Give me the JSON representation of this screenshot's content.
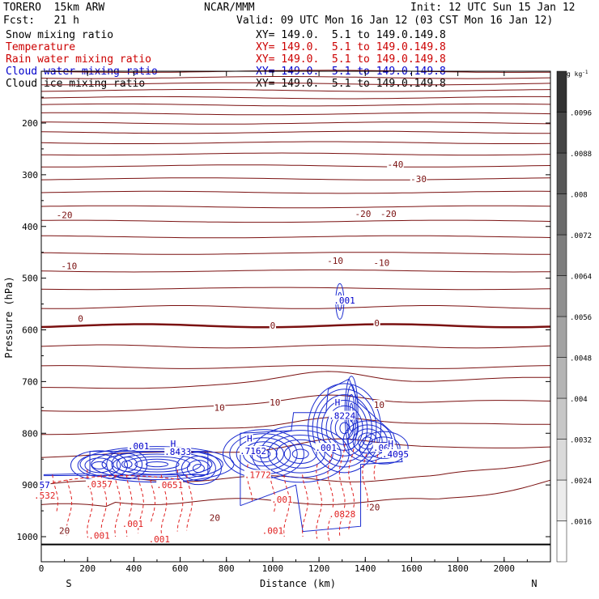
{
  "header": {
    "model": "TORERO  15km ARW",
    "center": "NCAR/MMM",
    "init": "Init: 12 UTC Sun 15 Jan 12",
    "fcst": "Fcst:   21 h",
    "valid": "Valid: 09 UTC Mon 16 Jan 12 (03 CST Mon 16 Jan 12)"
  },
  "fields": [
    {
      "name": "Snow mixing ratio",
      "xy": "XY= 149.0.  5.1 to 149.0.149.8",
      "color": "#000000"
    },
    {
      "name": "Temperature",
      "xy": "XY= 149.0.  5.1 to 149.0.149.8",
      "color": "#cc0000"
    },
    {
      "name": "Rain water mixing ratio",
      "xy": "XY= 149.0.  5.1 to 149.0.149.8",
      "color": "#cc0000"
    },
    {
      "name": "Cloud water mixing ratio",
      "xy": "XY= 149.0.  5.1 to 149.0.149.8",
      "color": "#0000cc"
    },
    {
      "name": "Cloud ice mixing ratio",
      "xy": "XY= 149.0.  5.1 to 149.0.149.8",
      "color": "#000000"
    }
  ],
  "chart_data": {
    "type": "cross-section contour",
    "xlabel": "Distance (km)",
    "ylabel": "Pressure (hPa)",
    "xlim": [
      0,
      2200
    ],
    "ylim": [
      1050,
      100
    ],
    "xticks": [
      0,
      200,
      400,
      600,
      800,
      1000,
      1200,
      1400,
      1600,
      1800,
      2000
    ],
    "yticks": [
      200,
      300,
      400,
      500,
      600,
      700,
      800,
      900,
      1000
    ],
    "x_end_labels": {
      "left": "S",
      "right": "N"
    },
    "colorbar": {
      "unit": "g kg",
      "unit_exp": "-1",
      "ticks": [
        ".0016",
        ".0024",
        ".0032",
        ".004",
        ".0048",
        ".0056",
        ".0064",
        ".0072",
        ".008",
        ".0088",
        ".0096"
      ]
    },
    "temperature_labels": [
      {
        "text": "-40",
        "x": 1530,
        "p": 280
      },
      {
        "text": "-30",
        "x": 1630,
        "p": 308
      },
      {
        "text": "-20",
        "x": 100,
        "p": 378
      },
      {
        "text": "-20",
        "x": 1390,
        "p": 375
      },
      {
        "text": "-20",
        "x": 1500,
        "p": 375
      },
      {
        "text": "-10",
        "x": 120,
        "p": 476
      },
      {
        "text": "-10",
        "x": 1270,
        "p": 466
      },
      {
        "text": "-10",
        "x": 1470,
        "p": 470
      },
      {
        "text": "0",
        "x": 170,
        "p": 578
      },
      {
        "text": "0",
        "x": 1000,
        "p": 591
      },
      {
        "text": "0",
        "x": 1450,
        "p": 587
      },
      {
        "text": "10",
        "x": 770,
        "p": 750
      },
      {
        "text": "10",
        "x": 1010,
        "p": 740
      },
      {
        "text": "10",
        "x": 1460,
        "p": 745
      },
      {
        "text": "20",
        "x": 100,
        "p": 988
      },
      {
        "text": "20",
        "x": 750,
        "p": 963
      },
      {
        "text": "20",
        "x": 1440,
        "p": 943
      }
    ],
    "cloud_labels": [
      {
        "text": ".001",
        "x": 1310,
        "p": 543,
        "color": "#0000cc"
      },
      {
        "text": ".001",
        "x": 420,
        "p": 825,
        "color": "#0000cc"
      },
      {
        "text": "H",
        "x": 570,
        "p": 820,
        "color": "#0000cc"
      },
      {
        "text": ".8433",
        "x": 590,
        "p": 836,
        "color": "#0000cc"
      },
      {
        "text": "H",
        "x": 900,
        "p": 810,
        "color": "#0000cc"
      },
      {
        "text": ".7162",
        "x": 915,
        "p": 834,
        "color": "#0000cc"
      },
      {
        "text": "H",
        "x": 1280,
        "p": 740,
        "color": "#0000cc"
      },
      {
        "text": ".8224",
        "x": 1300,
        "p": 766,
        "color": "#0000cc"
      },
      {
        "text": ".001",
        "x": 1230,
        "p": 828,
        "color": "#0000cc"
      },
      {
        "text": ".001",
        "x": 1480,
        "p": 828,
        "color": "#0000cc"
      },
      {
        "text": "H",
        "x": 1510,
        "p": 820,
        "color": "#0000cc"
      },
      {
        "text": ".4095",
        "x": 1530,
        "p": 840,
        "color": "#0000cc"
      },
      {
        "text": "57",
        "x": 15,
        "p": 900,
        "color": "#0000cc"
      }
    ],
    "rain_labels": [
      {
        "text": ".532",
        "x": 15,
        "p": 920
      },
      {
        "text": ".0357",
        "x": 250,
        "p": 898
      },
      {
        "text": ".0651",
        "x": 555,
        "p": 900
      },
      {
        "text": ".1772",
        "x": 935,
        "p": 880
      },
      {
        "text": ".001",
        "x": 1040,
        "p": 928
      },
      {
        "text": ".001",
        "x": 250,
        "p": 998
      },
      {
        "text": ".001",
        "x": 395,
        "p": 975
      },
      {
        "text": ".001",
        "x": 1000,
        "p": 988
      },
      {
        "text": ".001",
        "x": 510,
        "p": 1005
      },
      {
        "text": ".0828",
        "x": 1300,
        "p": 956
      }
    ]
  }
}
